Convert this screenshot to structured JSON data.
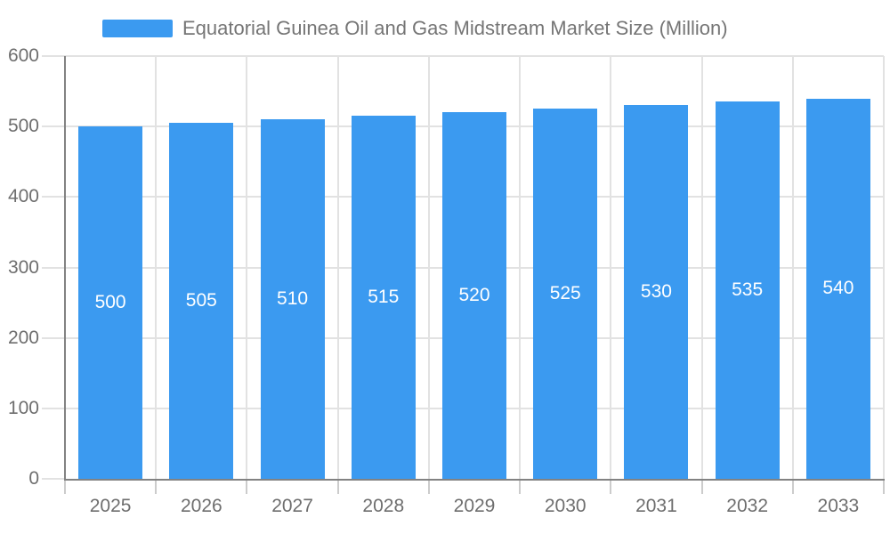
{
  "legend": {
    "label": "Equatorial Guinea Oil and Gas Midstream Market Size (Million)"
  },
  "colors": {
    "bar": "#3b9af0",
    "grid": "#e2e2e2",
    "axis": "#828282",
    "x_tick": "#cccccc",
    "tick_label": "#6e6e6e",
    "title": "#757575",
    "bar_label": "#ffffff",
    "background": "#ffffff"
  },
  "chart_data": {
    "type": "bar",
    "title": "Equatorial Guinea Oil and Gas Midstream Market Size (Million)",
    "series_name": "Equatorial Guinea Oil and Gas Midstream Market Size (Million)",
    "categories": [
      "2025",
      "2026",
      "2027",
      "2028",
      "2029",
      "2030",
      "2031",
      "2032",
      "2033"
    ],
    "values": [
      500,
      505,
      510,
      515,
      520,
      525,
      530,
      535,
      540
    ],
    "xlabel": "",
    "ylabel": "",
    "ylim": [
      0,
      600
    ],
    "yticks": [
      0,
      100,
      200,
      300,
      400,
      500,
      600
    ],
    "grid": true,
    "legend_position": "top",
    "bar_value_labels": true
  }
}
